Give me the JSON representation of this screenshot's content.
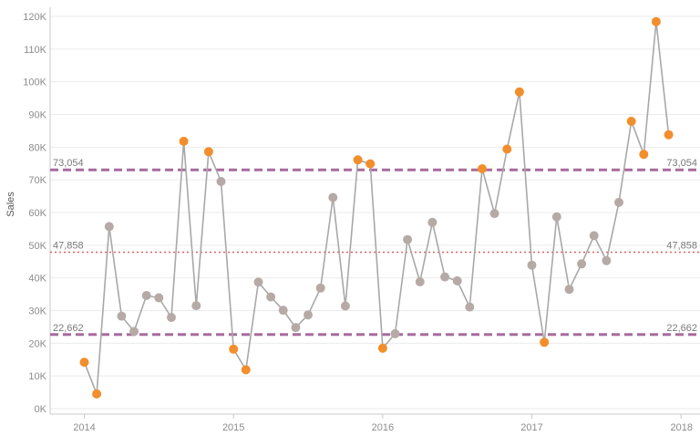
{
  "chart_data": {
    "type": "line",
    "ylabel": "Sales",
    "xlabel": "",
    "ylim": [
      0,
      120000
    ],
    "y_ticks": [
      0,
      10000,
      20000,
      30000,
      40000,
      50000,
      60000,
      70000,
      80000,
      90000,
      100000,
      110000,
      120000
    ],
    "y_tick_labels": [
      "0K",
      "10K",
      "20K",
      "30K",
      "40K",
      "50K",
      "60K",
      "70K",
      "80K",
      "90K",
      "100K",
      "110K",
      "120K"
    ],
    "x_tick_labels": [
      "2014",
      "2015",
      "2016",
      "2017",
      "2018"
    ],
    "x_ticks": [
      "2014-01",
      "2015-01",
      "2016-01",
      "2017-01",
      "2018-01"
    ],
    "grid": true,
    "series": [
      {
        "values": [
          {
            "x": "2014-01",
            "y": 14200,
            "outlier": true
          },
          {
            "x": "2014-02",
            "y": 4500,
            "outlier": true
          },
          {
            "x": "2014-03",
            "y": 55700,
            "outlier": false
          },
          {
            "x": "2014-04",
            "y": 28300,
            "outlier": false
          },
          {
            "x": "2014-05",
            "y": 23600,
            "outlier": false
          },
          {
            "x": "2014-06",
            "y": 34600,
            "outlier": false
          },
          {
            "x": "2014-07",
            "y": 33900,
            "outlier": false
          },
          {
            "x": "2014-08",
            "y": 27900,
            "outlier": false
          },
          {
            "x": "2014-09",
            "y": 81800,
            "outlier": true
          },
          {
            "x": "2014-10",
            "y": 31500,
            "outlier": false
          },
          {
            "x": "2014-11",
            "y": 78600,
            "outlier": true
          },
          {
            "x": "2014-12",
            "y": 69500,
            "outlier": false
          },
          {
            "x": "2015-01",
            "y": 18200,
            "outlier": true
          },
          {
            "x": "2015-02",
            "y": 11900,
            "outlier": true
          },
          {
            "x": "2015-03",
            "y": 38700,
            "outlier": false
          },
          {
            "x": "2015-04",
            "y": 34200,
            "outlier": false
          },
          {
            "x": "2015-05",
            "y": 30100,
            "outlier": false
          },
          {
            "x": "2015-06",
            "y": 24800,
            "outlier": false
          },
          {
            "x": "2015-07",
            "y": 28700,
            "outlier": false
          },
          {
            "x": "2015-08",
            "y": 36900,
            "outlier": false
          },
          {
            "x": "2015-09",
            "y": 64600,
            "outlier": false
          },
          {
            "x": "2015-10",
            "y": 31400,
            "outlier": false
          },
          {
            "x": "2015-11",
            "y": 76100,
            "outlier": true
          },
          {
            "x": "2015-12",
            "y": 74900,
            "outlier": true
          },
          {
            "x": "2016-01",
            "y": 18500,
            "outlier": true
          },
          {
            "x": "2016-02",
            "y": 22900,
            "outlier": false
          },
          {
            "x": "2016-03",
            "y": 51700,
            "outlier": false
          },
          {
            "x": "2016-04",
            "y": 38800,
            "outlier": false
          },
          {
            "x": "2016-05",
            "y": 57000,
            "outlier": false
          },
          {
            "x": "2016-06",
            "y": 40300,
            "outlier": false
          },
          {
            "x": "2016-07",
            "y": 39100,
            "outlier": false
          },
          {
            "x": "2016-08",
            "y": 31100,
            "outlier": false
          },
          {
            "x": "2016-09",
            "y": 73400,
            "outlier": true
          },
          {
            "x": "2016-10",
            "y": 59700,
            "outlier": false
          },
          {
            "x": "2016-11",
            "y": 79400,
            "outlier": true
          },
          {
            "x": "2016-12",
            "y": 96900,
            "outlier": true
          },
          {
            "x": "2017-01",
            "y": 43900,
            "outlier": false
          },
          {
            "x": "2017-02",
            "y": 20300,
            "outlier": true
          },
          {
            "x": "2017-03",
            "y": 58700,
            "outlier": false
          },
          {
            "x": "2017-04",
            "y": 36500,
            "outlier": false
          },
          {
            "x": "2017-05",
            "y": 44300,
            "outlier": false
          },
          {
            "x": "2017-06",
            "y": 52900,
            "outlier": false
          },
          {
            "x": "2017-07",
            "y": 45300,
            "outlier": false
          },
          {
            "x": "2017-08",
            "y": 63100,
            "outlier": false
          },
          {
            "x": "2017-09",
            "y": 87900,
            "outlier": true
          },
          {
            "x": "2017-10",
            "y": 77800,
            "outlier": true
          },
          {
            "x": "2017-11",
            "y": 118400,
            "outlier": true
          },
          {
            "x": "2017-12",
            "y": 83800,
            "outlier": true
          }
        ]
      }
    ],
    "reference_lines": [
      {
        "value": 73054,
        "label": "73,054",
        "style": "dashed",
        "color": "#a86b9c"
      },
      {
        "value": 47858,
        "label": "47,858",
        "style": "dotted",
        "color": "#e0625a"
      },
      {
        "value": 22662,
        "label": "22,662",
        "style": "dashed",
        "color": "#a86b9c"
      }
    ],
    "colors": {
      "line": "#a8a8a8",
      "point_normal": "#b6aaa6",
      "point_outlier": "#f28e2b",
      "grid": "#ebebeb",
      "axis": "#c8c8c8"
    }
  }
}
